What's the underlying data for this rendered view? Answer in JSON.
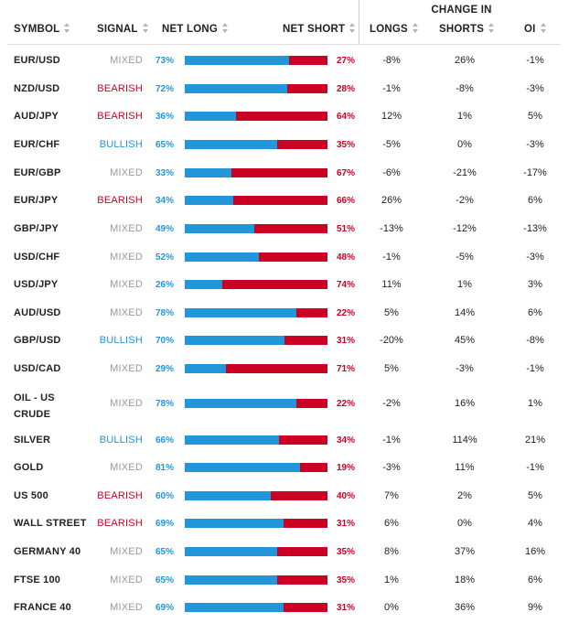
{
  "header": {
    "group_label": "CHANGE IN",
    "symbol": "SYMBOL",
    "signal": "SIGNAL",
    "net_long": "NET LONG",
    "net_short": "NET SHORT",
    "longs": "LONGS",
    "shorts": "SHORTS",
    "oi": "OI"
  },
  "colors": {
    "long_blue": "#2196d8",
    "short_red": "#cc0022",
    "mixed_gray": "#999999"
  },
  "rows": [
    {
      "symbol": "EUR/USD",
      "signal": "MIXED",
      "net_long": "73%",
      "long_value": 73,
      "net_short": "27%",
      "longs": "-8%",
      "shorts": "26%",
      "oi": "-1%"
    },
    {
      "symbol": "NZD/USD",
      "signal": "BEARISH",
      "net_long": "72%",
      "long_value": 72,
      "net_short": "28%",
      "longs": "-1%",
      "shorts": "-8%",
      "oi": "-3%"
    },
    {
      "symbol": "AUD/JPY",
      "signal": "BEARISH",
      "net_long": "36%",
      "long_value": 36,
      "net_short": "64%",
      "longs": "12%",
      "shorts": "1%",
      "oi": "5%"
    },
    {
      "symbol": "EUR/CHF",
      "signal": "BULLISH",
      "net_long": "65%",
      "long_value": 65,
      "net_short": "35%",
      "longs": "-5%",
      "shorts": "0%",
      "oi": "-3%"
    },
    {
      "symbol": "EUR/GBP",
      "signal": "MIXED",
      "net_long": "33%",
      "long_value": 33,
      "net_short": "67%",
      "longs": "-6%",
      "shorts": "-21%",
      "oi": "-17%"
    },
    {
      "symbol": "EUR/JPY",
      "signal": "BEARISH",
      "net_long": "34%",
      "long_value": 34,
      "net_short": "66%",
      "longs": "26%",
      "shorts": "-2%",
      "oi": "6%"
    },
    {
      "symbol": "GBP/JPY",
      "signal": "MIXED",
      "net_long": "49%",
      "long_value": 49,
      "net_short": "51%",
      "longs": "-13%",
      "shorts": "-12%",
      "oi": "-13%"
    },
    {
      "symbol": "USD/CHF",
      "signal": "MIXED",
      "net_long": "52%",
      "long_value": 52,
      "net_short": "48%",
      "longs": "-1%",
      "shorts": "-5%",
      "oi": "-3%"
    },
    {
      "symbol": "USD/JPY",
      "signal": "MIXED",
      "net_long": "26%",
      "long_value": 26,
      "net_short": "74%",
      "longs": "11%",
      "shorts": "1%",
      "oi": "3%"
    },
    {
      "symbol": "AUD/USD",
      "signal": "MIXED",
      "net_long": "78%",
      "long_value": 78,
      "net_short": "22%",
      "longs": "5%",
      "shorts": "14%",
      "oi": "6%"
    },
    {
      "symbol": "GBP/USD",
      "signal": "BULLISH",
      "net_long": "70%",
      "long_value": 70,
      "net_short": "31%",
      "longs": "-20%",
      "shorts": "45%",
      "oi": "-8%"
    },
    {
      "symbol": "USD/CAD",
      "signal": "MIXED",
      "net_long": "29%",
      "long_value": 29,
      "net_short": "71%",
      "longs": "5%",
      "shorts": "-3%",
      "oi": "-1%"
    },
    {
      "symbol": "OIL - US CRUDE",
      "signal": "MIXED",
      "net_long": "78%",
      "long_value": 78,
      "net_short": "22%",
      "longs": "-2%",
      "shorts": "16%",
      "oi": "1%"
    },
    {
      "symbol": "SILVER",
      "signal": "BULLISH",
      "net_long": "66%",
      "long_value": 66,
      "net_short": "34%",
      "longs": "-1%",
      "shorts": "114%",
      "oi": "21%"
    },
    {
      "symbol": "GOLD",
      "signal": "MIXED",
      "net_long": "81%",
      "long_value": 81,
      "net_short": "19%",
      "longs": "-3%",
      "shorts": "11%",
      "oi": "-1%"
    },
    {
      "symbol": "US 500",
      "signal": "BEARISH",
      "net_long": "60%",
      "long_value": 60,
      "net_short": "40%",
      "longs": "7%",
      "shorts": "2%",
      "oi": "5%"
    },
    {
      "symbol": "WALL STREET",
      "signal": "BEARISH",
      "net_long": "69%",
      "long_value": 69,
      "net_short": "31%",
      "longs": "6%",
      "shorts": "0%",
      "oi": "4%"
    },
    {
      "symbol": "GERMANY 40",
      "signal": "MIXED",
      "net_long": "65%",
      "long_value": 65,
      "net_short": "35%",
      "longs": "8%",
      "shorts": "37%",
      "oi": "16%"
    },
    {
      "symbol": "FTSE 100",
      "signal": "MIXED",
      "net_long": "65%",
      "long_value": 65,
      "net_short": "35%",
      "longs": "1%",
      "shorts": "18%",
      "oi": "6%"
    },
    {
      "symbol": "FRANCE 40",
      "signal": "MIXED",
      "net_long": "69%",
      "long_value": 69,
      "net_short": "31%",
      "longs": "0%",
      "shorts": "36%",
      "oi": "9%"
    }
  ]
}
